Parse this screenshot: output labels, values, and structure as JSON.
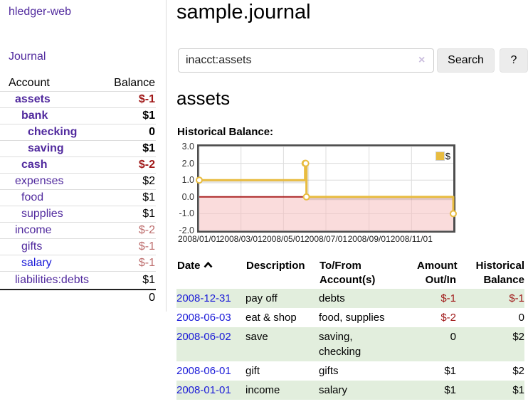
{
  "app": {
    "title": "hledger-web",
    "nav": {
      "journal": "Journal"
    }
  },
  "colors": {
    "link_purple": "#512a9e",
    "link_blue": "#1a1ad8",
    "negative_strong": "#a01818",
    "negative_muted": "#bd6d6d",
    "row_stripe_green": "#e2eedd",
    "chart_line_gold": "#e8bc40"
  },
  "sidebar": {
    "accounts": {
      "col_account": "Account",
      "col_balance": "Balance",
      "rows": [
        {
          "name": "assets",
          "balance": "$-1",
          "indent": 0,
          "bold": true,
          "name_color": "purple",
          "balance_style": "neg-strong"
        },
        {
          "name": "bank",
          "balance": "$1",
          "indent": 1,
          "bold": true,
          "name_color": "purple",
          "balance_style": "pos"
        },
        {
          "name": "checking",
          "balance": "0",
          "indent": 2,
          "bold": true,
          "name_color": "purple",
          "balance_style": "pos"
        },
        {
          "name": "saving",
          "balance": "$1",
          "indent": 2,
          "bold": true,
          "name_color": "purple",
          "balance_style": "pos"
        },
        {
          "name": "cash",
          "balance": "$-2",
          "indent": 1,
          "bold": true,
          "name_color": "purple",
          "balance_style": "neg-strong"
        },
        {
          "name": "expenses",
          "balance": "$2",
          "indent": 0,
          "bold": false,
          "name_color": "purple",
          "balance_style": "pos"
        },
        {
          "name": "food",
          "balance": "$1",
          "indent": 1,
          "bold": false,
          "name_color": "purple",
          "balance_style": "pos"
        },
        {
          "name": "supplies",
          "balance": "$1",
          "indent": 1,
          "bold": false,
          "name_color": "purple",
          "balance_style": "pos"
        },
        {
          "name": "income",
          "balance": "$-2",
          "indent": 0,
          "bold": false,
          "name_color": "purple",
          "balance_style": "neg-muted"
        },
        {
          "name": "gifts",
          "balance": "$-1",
          "indent": 1,
          "bold": false,
          "name_color": "purple",
          "balance_style": "neg-muted"
        },
        {
          "name": "salary",
          "balance": "$-1",
          "indent": 1,
          "bold": false,
          "name_color": "blue",
          "balance_style": "neg-muted"
        },
        {
          "name": "liabilities:debts",
          "balance": "$1",
          "indent": 0,
          "bold": false,
          "name_color": "purple",
          "balance_style": "pos"
        }
      ],
      "total": "0"
    }
  },
  "main": {
    "title": "sample.journal",
    "search": {
      "value": "inacct:assets",
      "clear_icon": "×",
      "button": "Search",
      "help_button": "?"
    },
    "account_heading": "assets",
    "chart_title": "Historical Balance:"
  },
  "chart_data": {
    "type": "line",
    "title": "Historical Balance:",
    "step": true,
    "series": [
      {
        "name": "$",
        "color": "#e8bc40",
        "points": [
          [
            "2008-01-01",
            1
          ],
          [
            "2008-06-01",
            2
          ],
          [
            "2008-06-02",
            2
          ],
          [
            "2008-06-03",
            0
          ],
          [
            "2008-12-31",
            -1
          ]
        ]
      }
    ],
    "x_range": [
      "2008-01-01",
      "2008-12-31"
    ],
    "x_tick_labels": [
      "2008/01/01",
      "2008/03/01",
      "2008/05/01",
      "2008/07/01",
      "2008/09/01",
      "2008/11/01"
    ],
    "y_tick_labels": [
      "3.0",
      "2.0",
      "1.0",
      "0.0",
      "-1.0",
      "-2.0"
    ],
    "ylim": [
      -2,
      3
    ],
    "grid": true,
    "legend": {
      "label": "$",
      "position": "top-right"
    },
    "zero_line_color": "#aa2222",
    "negative_region_fill": "#f6b9b9"
  },
  "register": {
    "headers": {
      "date": "Date",
      "description": "Description",
      "account_lines": [
        "To/From",
        "Account(s)"
      ],
      "amount_lines": [
        "Amount",
        "Out/In"
      ],
      "balance_lines": [
        "Historical",
        "Balance"
      ]
    },
    "rows": [
      {
        "date": "2008-12-31",
        "description": "pay off",
        "account_lines": [
          "debts"
        ],
        "amount": "$-1",
        "amount_negative": true,
        "balance": "$-1",
        "balance_negative": true
      },
      {
        "date": "2008-06-03",
        "description": "eat & shop",
        "account_lines": [
          "food, supplies"
        ],
        "amount": "$-2",
        "amount_negative": true,
        "balance": "0",
        "balance_negative": false
      },
      {
        "date": "2008-06-02",
        "description": "save",
        "account_lines": [
          "saving,",
          "checking"
        ],
        "amount": "0",
        "amount_negative": false,
        "balance": "$2",
        "balance_negative": false
      },
      {
        "date": "2008-06-01",
        "description": "gift",
        "account_lines": [
          "gifts"
        ],
        "amount": "$1",
        "amount_negative": false,
        "balance": "$2",
        "balance_negative": false
      },
      {
        "date": "2008-01-01",
        "description": "income",
        "account_lines": [
          "salary"
        ],
        "amount": "$1",
        "amount_negative": false,
        "balance": "$1",
        "balance_negative": false
      }
    ]
  }
}
